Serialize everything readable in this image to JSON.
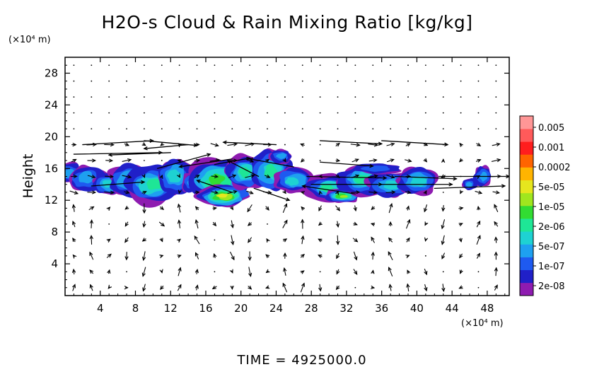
{
  "chart_data": {
    "type": "heatmap",
    "title": "H2O-s Cloud & Rain Mixing Ratio [kg/kg]",
    "ylabel": "Height",
    "y_unit": "(×10⁴ m)",
    "x_unit": "(×10⁴ m)",
    "xlim": [
      0,
      50.5
    ],
    "ylim": [
      0,
      30
    ],
    "x_ticks": [
      4,
      8,
      12,
      16,
      20,
      24,
      28,
      32,
      36,
      40,
      44,
      48
    ],
    "y_ticks": [
      4,
      8,
      12,
      16,
      20,
      24,
      28
    ],
    "x_tick_labels": [
      "4",
      "8",
      "12",
      "16",
      "20",
      "24",
      "28",
      "32",
      "36",
      "40",
      "44",
      "48"
    ],
    "y_tick_labels": [
      "4",
      "8",
      "12",
      "16",
      "20",
      "24",
      "28"
    ],
    "colorbar": {
      "labels": [
        "0.005",
        "0.001",
        "0.0002",
        "5e-05",
        "1e-05",
        "2e-06",
        "5e-07",
        "1e-07",
        "2e-08"
      ],
      "colors": [
        "#8e1bb0",
        "#2020c8",
        "#1e5af0",
        "#1ea0f0",
        "#1ed2d2",
        "#1ee696",
        "#32dc32",
        "#a0e61e",
        "#e6e61e",
        "#ffb400",
        "#ff6400",
        "#ff1e1e",
        "#ff5a5a",
        "#ff9696"
      ]
    },
    "cloud_cells": [
      {
        "x": 0.5,
        "y": 15.5,
        "rx": 1.4,
        "ry": 1.2,
        "level": 2
      },
      {
        "x": 2.5,
        "y": 14.8,
        "rx": 2.0,
        "ry": 1.5,
        "level": 2
      },
      {
        "x": 5.0,
        "y": 14.0,
        "rx": 1.8,
        "ry": 1.3,
        "level": 3
      },
      {
        "x": 7.5,
        "y": 14.5,
        "rx": 2.5,
        "ry": 2.0,
        "level": 3
      },
      {
        "x": 10.0,
        "y": 14.0,
        "rx": 3.0,
        "ry": 2.3,
        "level": 4
      },
      {
        "x": 12.5,
        "y": 15.0,
        "rx": 2.0,
        "ry": 2.2,
        "level": 3
      },
      {
        "x": 14.5,
        "y": 14.2,
        "rx": 1.2,
        "ry": 1.2,
        "level": 2
      },
      {
        "x": 17.5,
        "y": 14.5,
        "rx": 3.2,
        "ry": 2.5,
        "level": 5
      },
      {
        "x": 18.0,
        "y": 12.5,
        "rx": 2.8,
        "ry": 1.3,
        "level": 7
      },
      {
        "x": 20.5,
        "y": 15.5,
        "rx": 2.0,
        "ry": 2.0,
        "level": 4
      },
      {
        "x": 23.5,
        "y": 15.8,
        "rx": 2.2,
        "ry": 2.5,
        "level": 4
      },
      {
        "x": 24.5,
        "y": 17.5,
        "rx": 1.2,
        "ry": 0.8,
        "level": 2
      },
      {
        "x": 26.0,
        "y": 14.5,
        "rx": 2.0,
        "ry": 1.5,
        "level": 3
      },
      {
        "x": 30.0,
        "y": 13.5,
        "rx": 2.5,
        "ry": 1.5,
        "level": 4
      },
      {
        "x": 31.5,
        "y": 12.5,
        "rx": 2.0,
        "ry": 0.8,
        "level": 6
      },
      {
        "x": 34.0,
        "y": 14.5,
        "rx": 3.0,
        "ry": 1.8,
        "level": 4
      },
      {
        "x": 37.0,
        "y": 14.0,
        "rx": 2.5,
        "ry": 1.5,
        "level": 3
      },
      {
        "x": 40.0,
        "y": 14.5,
        "rx": 2.3,
        "ry": 1.6,
        "level": 3
      },
      {
        "x": 35.5,
        "y": 16.0,
        "rx": 2.5,
        "ry": 0.6,
        "level": 1
      },
      {
        "x": 47.5,
        "y": 15.0,
        "rx": 1.0,
        "ry": 1.2,
        "level": 2
      },
      {
        "x": 46.0,
        "y": 14.0,
        "rx": 0.8,
        "ry": 0.7,
        "level": 2
      }
    ],
    "jet_vectors": [
      {
        "x": 2.0,
        "y": 19.0,
        "u": 8.0,
        "v": 0.5
      },
      {
        "x": 9.0,
        "y": 19.5,
        "u": 6.0,
        "v": -0.6
      },
      {
        "x": 14.0,
        "y": 19.0,
        "u": -5.0,
        "v": -0.5
      },
      {
        "x": 24.0,
        "y": 19.0,
        "u": -6.0,
        "v": 0.3
      },
      {
        "x": 29.0,
        "y": 19.5,
        "u": 7.0,
        "v": -0.4
      },
      {
        "x": 36.0,
        "y": 19.5,
        "u": 7.5,
        "v": -0.5
      },
      {
        "x": 1.0,
        "y": 17.8,
        "u": 10.0,
        "v": 0.2
      },
      {
        "x": 12.0,
        "y": 18.0,
        "u": -7.0,
        "v": -0.3
      },
      {
        "x": 19.0,
        "y": 17.2,
        "u": -6.0,
        "v": -1.0
      },
      {
        "x": 26.0,
        "y": 16.2,
        "u": -5.0,
        "v": 1.0
      },
      {
        "x": 29.0,
        "y": 16.8,
        "u": 6.0,
        "v": -0.5
      },
      {
        "x": 10.5,
        "y": 16.0,
        "u": 6.0,
        "v": 1.8
      },
      {
        "x": 17.0,
        "y": 16.5,
        "u": 4.0,
        "v": 0.8
      },
      {
        "x": 22.0,
        "y": 15.0,
        "u": -3.5,
        "v": 2.0
      },
      {
        "x": 3.0,
        "y": 13.8,
        "u": 6.0,
        "v": 0.5
      },
      {
        "x": 21.5,
        "y": 13.5,
        "u": 4.0,
        "v": -1.5
      },
      {
        "x": 28.0,
        "y": 14.0,
        "u": 8.0,
        "v": 0.0
      },
      {
        "x": 36.0,
        "y": 14.0,
        "u": 8.0,
        "v": 0.0
      },
      {
        "x": 27.5,
        "y": 15.0,
        "u": 9.0,
        "v": -0.2
      },
      {
        "x": 37.5,
        "y": 15.0,
        "u": 7.0,
        "v": -0.3
      },
      {
        "x": 42.0,
        "y": 13.5,
        "u": 8.0,
        "v": 0.3
      },
      {
        "x": 42.5,
        "y": 15.0,
        "u": 8.0,
        "v": 0.0
      },
      {
        "x": 33.0,
        "y": 12.8,
        "u": -6.0,
        "v": 1.0
      },
      {
        "x": 19.0,
        "y": 13.0,
        "u": -4.0,
        "v": 1.5
      }
    ],
    "time_label": "TIME",
    "time_value": "4925000.0"
  }
}
